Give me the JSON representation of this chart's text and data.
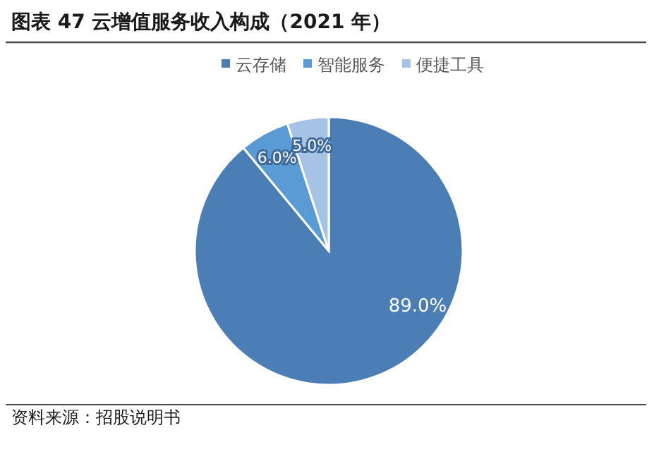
{
  "chart_data": {
    "type": "pie",
    "title": "图表 47 云增值服务收入构成（2021 年）",
    "categories": [
      "云存储",
      "智能服务",
      "便捷工具"
    ],
    "values": [
      89.0,
      6.0,
      5.0
    ],
    "colors": [
      "#4a7eb5",
      "#5b9bd5",
      "#a6c3e6"
    ],
    "value_labels": [
      "89.0%",
      "6.0%",
      "5.0%"
    ],
    "legend": "top",
    "annotations": [
      "资料来源：招股说明书"
    ]
  }
}
